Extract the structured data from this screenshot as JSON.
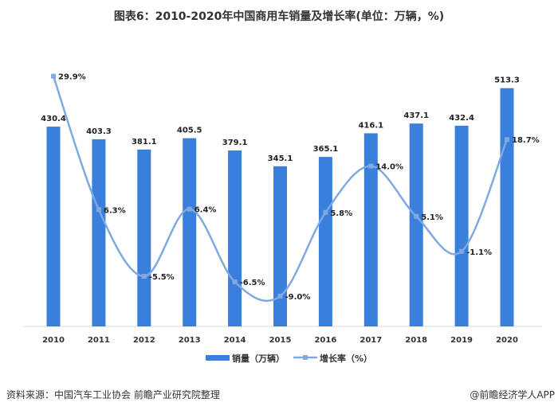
{
  "chart_data": {
    "type": "bar+line",
    "title": "图表6：2010-2020年中国商用车销量及增长率(单位：万辆，%)",
    "categories": [
      "2010",
      "2011",
      "2012",
      "2013",
      "2014",
      "2015",
      "2016",
      "2017",
      "2018",
      "2019",
      "2020"
    ],
    "series": [
      {
        "name": "销量（万辆）",
        "type": "bar",
        "axis": "left",
        "color": "#3A7FDB",
        "values": [
          430.4,
          403.3,
          381.1,
          405.5,
          379.1,
          345.1,
          365.1,
          416.1,
          437.1,
          432.4,
          513.3
        ],
        "labels": [
          "430.4",
          "403.3",
          "381.1",
          "405.5",
          "379.1",
          "345.1",
          "365.1",
          "416.1",
          "437.1",
          "432.4",
          "513.3"
        ]
      },
      {
        "name": "增长率（%）",
        "type": "line",
        "smooth": true,
        "axis": "right",
        "color": "#7FA9E0",
        "values": [
          29.9,
          6.3,
          -5.5,
          6.4,
          -6.5,
          -9.0,
          5.8,
          14.0,
          5.1,
          -1.1,
          18.7
        ],
        "labels": [
          "29.9%",
          "6.3%",
          "-5.5%",
          "6.4%",
          "-6.5%",
          "-9.0%",
          "5.8%",
          "14.0%",
          "5.1%",
          "-1.1%",
          "18.7%"
        ]
      }
    ],
    "legend": "bottom",
    "grid": false
  },
  "footer": {
    "source": "资料来源：中国汽车工业协会 前瞻产业研究院整理",
    "credit": "@前瞻经济学人APP"
  },
  "watermark": "前瞻产业研究院"
}
